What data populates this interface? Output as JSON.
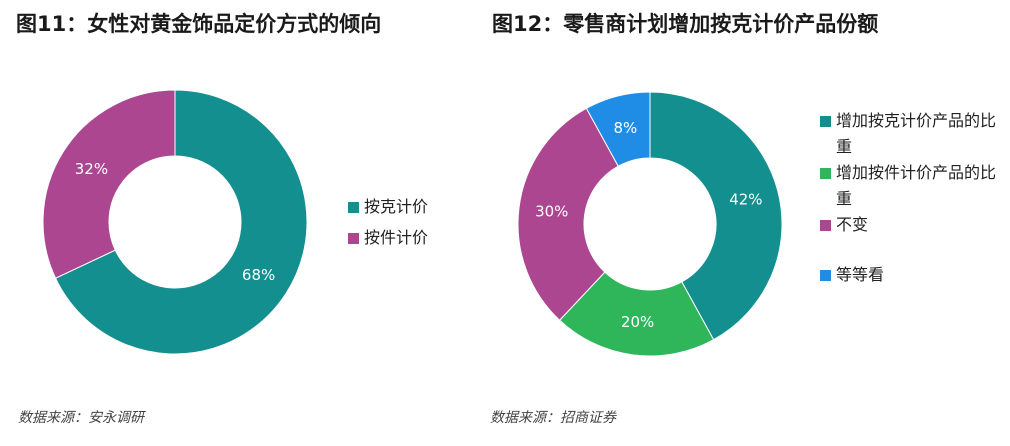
{
  "chart_data": [
    {
      "type": "pie",
      "title": "图11：女性对黄金饰品定价方式的倾向",
      "labels": [
        "按克计价",
        "按件计价"
      ],
      "values": [
        68,
        32
      ],
      "value_labels": [
        "68%",
        "32%"
      ],
      "colors": [
        "#148f8f",
        "#ac4690"
      ],
      "legend": "right",
      "source": "数据来源：安永调研"
    },
    {
      "type": "pie",
      "title": "图12：零售商计划增加按克计价产品份额",
      "labels": [
        "增加按克计价产品的比重",
        "增加按件计价产品的比重",
        "不变",
        "等等看"
      ],
      "values": [
        42,
        20,
        30,
        8
      ],
      "value_labels": [
        "42%",
        "20%",
        "30%",
        "8%"
      ],
      "colors": [
        "#148f8f",
        "#2fb65a",
        "#ac4690",
        "#1f8de6"
      ],
      "legend": "right",
      "source": "数据来源：招商证券"
    }
  ]
}
